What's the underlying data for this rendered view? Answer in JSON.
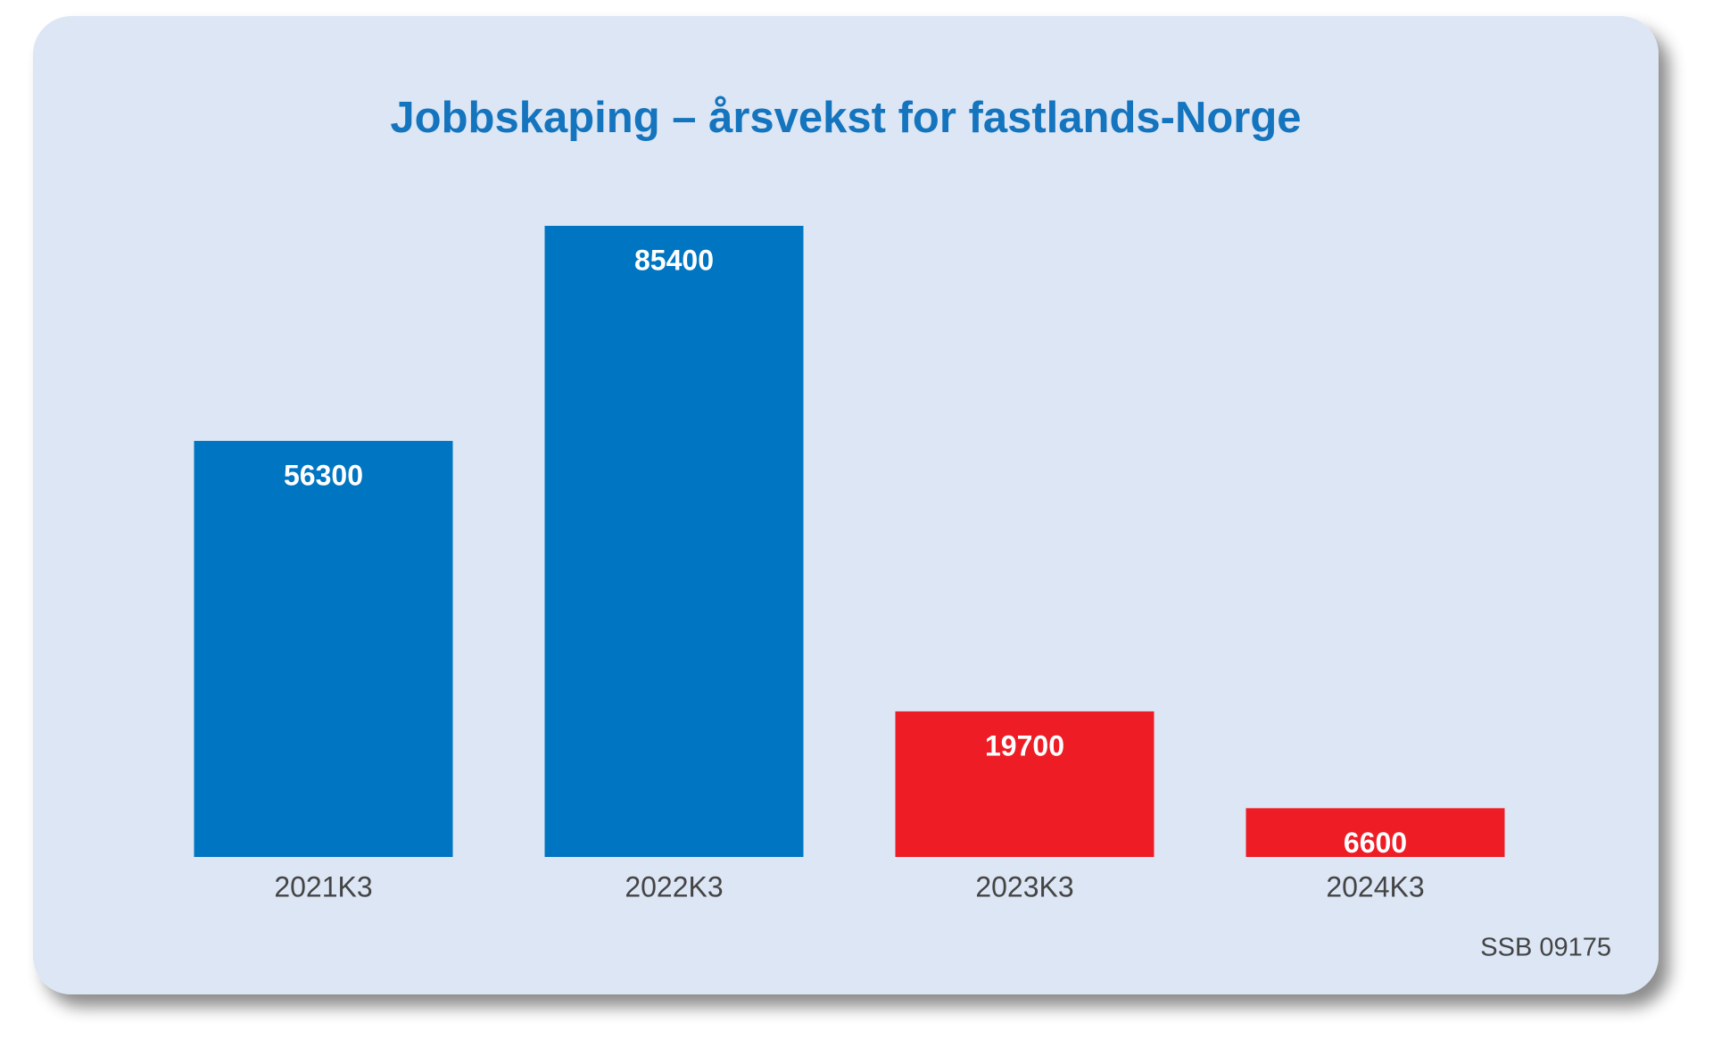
{
  "chart_data": {
    "type": "bar",
    "title": "Jobbskaping – årsvekst for fastlands-Norge",
    "categories": [
      "2021K3",
      "2022K3",
      "2023K3",
      "2024K3"
    ],
    "values": [
      56300,
      85400,
      19700,
      6600
    ],
    "colors": [
      "#0075c2",
      "#0075c2",
      "#ee1c25",
      "#ee1c25"
    ],
    "source": "SSB 09175"
  }
}
